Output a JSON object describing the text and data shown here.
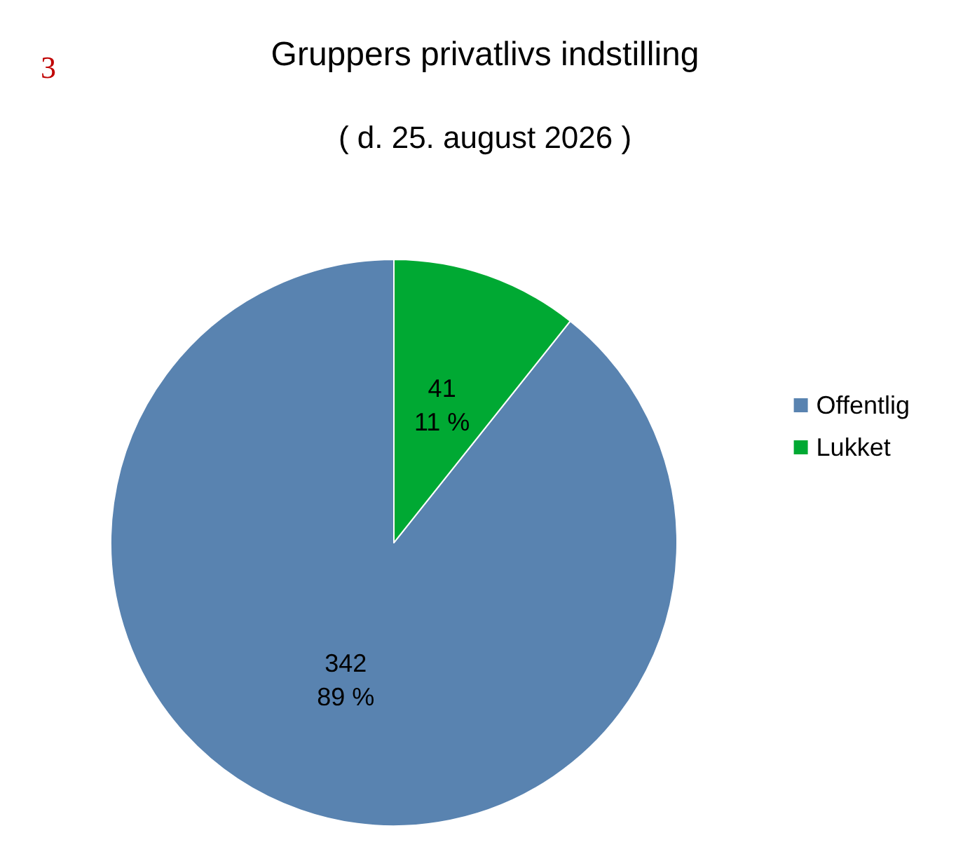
{
  "chart_data": {
    "type": "pie",
    "title": "Gruppers privatlivs indstilling",
    "subtitle": "( d. 25. august 2026 )",
    "annotations": [
      "3"
    ],
    "categories": [
      "Offentlig",
      "Lukket"
    ],
    "values": [
      342,
      41
    ],
    "colors": [
      "#5983b0",
      "#00a933"
    ],
    "value_labels": [
      "342\n89 %",
      "41\n11 %"
    ],
    "legend": "right"
  }
}
